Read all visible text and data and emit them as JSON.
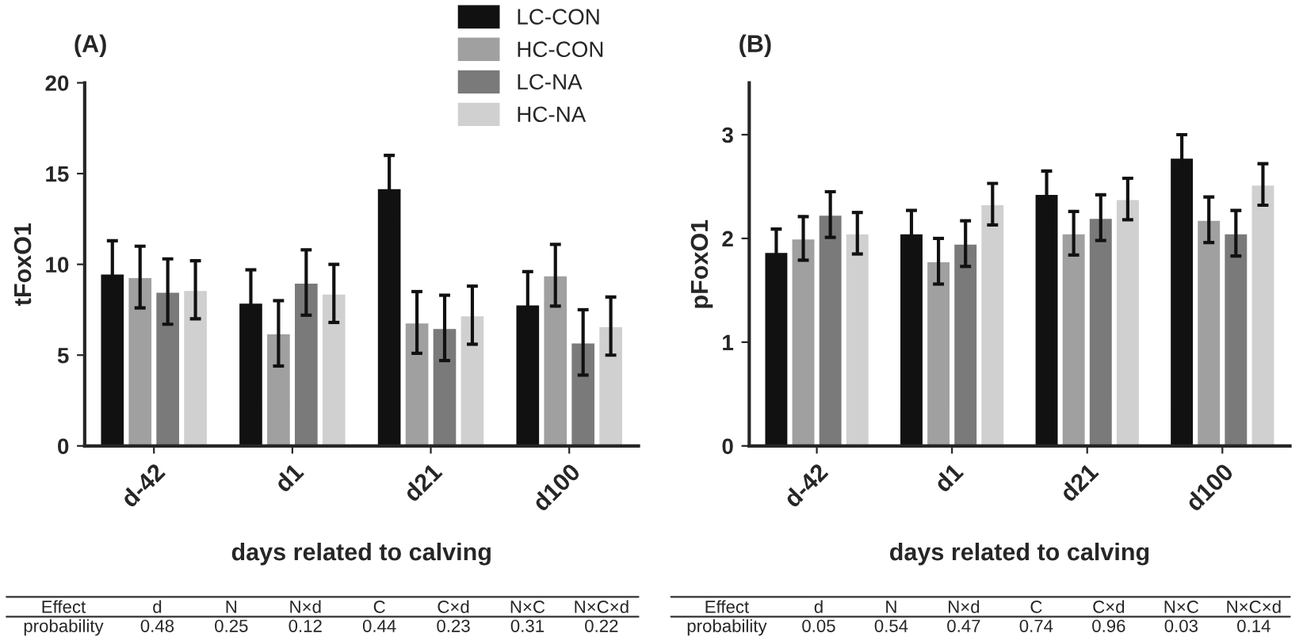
{
  "chart_data": [
    {
      "type": "bar",
      "title": "(A)",
      "xlabel": "days related to calving",
      "ylabel": "tFoxO1",
      "categories": [
        "d-42",
        "d1",
        "d21",
        "d100"
      ],
      "series": [
        {
          "name": "LC-CON",
          "color": "#111111",
          "values": [
            9.5,
            7.9,
            14.2,
            7.8
          ],
          "errors": [
            1.8,
            1.8,
            1.8,
            1.8
          ]
        },
        {
          "name": "HC-CON",
          "color": "#a0a0a0",
          "values": [
            9.3,
            6.2,
            6.8,
            9.4
          ],
          "errors": [
            1.7,
            1.8,
            1.7,
            1.7
          ]
        },
        {
          "name": "LC-NA",
          "color": "#7a7a7a",
          "values": [
            8.5,
            9.0,
            6.5,
            5.7
          ],
          "errors": [
            1.8,
            1.8,
            1.8,
            1.8
          ]
        },
        {
          "name": "HC-NA",
          "color": "#d0d0d0",
          "values": [
            8.6,
            8.4,
            7.2,
            6.6
          ],
          "errors": [
            1.6,
            1.6,
            1.6,
            1.6
          ]
        }
      ],
      "ylim": [
        0,
        20
      ],
      "yticks": [
        0,
        5,
        10,
        15,
        20
      ],
      "grid": false,
      "legend": "top right",
      "annotations": [
        "Effect",
        "d",
        "N",
        "N×d",
        "C",
        "C×d",
        "N×C",
        "N×C×d",
        "probability",
        "0.48",
        "0.25",
        "0.12",
        "0.44",
        "0.23",
        "0.31",
        "0.22"
      ]
    },
    {
      "type": "bar",
      "title": "(B)",
      "xlabel": "days related to calving",
      "ylabel": "pFoxO1",
      "categories": [
        "d-42",
        "d1",
        "d21",
        "d100"
      ],
      "series": [
        {
          "color": "#111111",
          "values": [
            1.87,
            2.05,
            2.43,
            2.78
          ],
          "errors": [
            0.22,
            0.22,
            0.22,
            0.22
          ]
        },
        {
          "color": "#a0a0a0",
          "values": [
            2.0,
            1.78,
            2.05,
            2.18
          ],
          "errors": [
            0.21,
            0.22,
            0.21,
            0.22
          ]
        },
        {
          "color": "#7a7a7a",
          "values": [
            2.23,
            1.95,
            2.2,
            2.05
          ],
          "errors": [
            0.22,
            0.22,
            0.22,
            0.22
          ]
        },
        {
          "color": "#d0d0d0",
          "values": [
            2.05,
            2.33,
            2.38,
            2.52
          ],
          "errors": [
            0.2,
            0.2,
            0.2,
            0.2
          ]
        }
      ],
      "ylim": [
        0,
        3.5
      ],
      "yticks": [
        0,
        1,
        2,
        3
      ],
      "grid": false,
      "annotations": [
        "Effect",
        "d",
        "N",
        "N×d",
        "C",
        "C×d",
        "N×C",
        "N×C×d",
        "probability",
        "0.05",
        "0.54",
        "0.47",
        "0.74",
        "0.96",
        "0.03",
        "0.14"
      ]
    }
  ]
}
